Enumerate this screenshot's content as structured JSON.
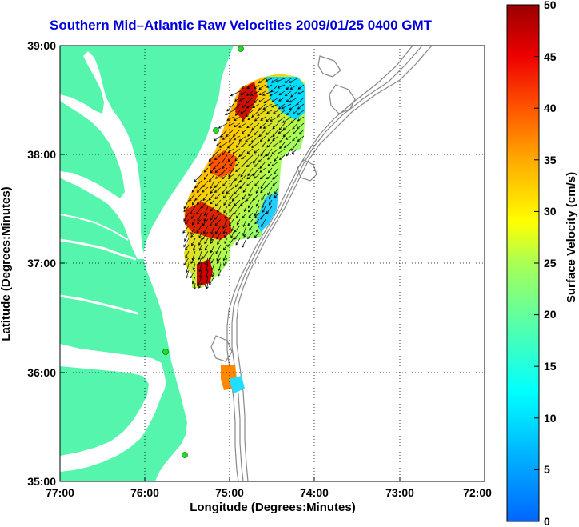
{
  "title": "Southern Mid–Atlantic Raw Velocities 2009/01/25 0400 GMT",
  "xlabel": "Longitude (Degrees:Minutes)",
  "ylabel": "Latitude (Degrees:Minutes)",
  "colorbar": {
    "label": "Surface Velocity (cm/s)",
    "ticks": [
      "0",
      "5",
      "10",
      "15",
      "20",
      "25",
      "30",
      "35",
      "40",
      "45",
      "50"
    ],
    "range": [
      0,
      50
    ]
  },
  "x_ticks": [
    "77:00",
    "76:00",
    "75:00",
    "74:00",
    "73:00",
    "72:00"
  ],
  "y_ticks": [
    "39:00",
    "38:00",
    "37:00",
    "36:00",
    "35:00"
  ],
  "colors": {
    "land": "#55f5ae",
    "title": "#0000dd",
    "station": "#22dd22"
  }
}
